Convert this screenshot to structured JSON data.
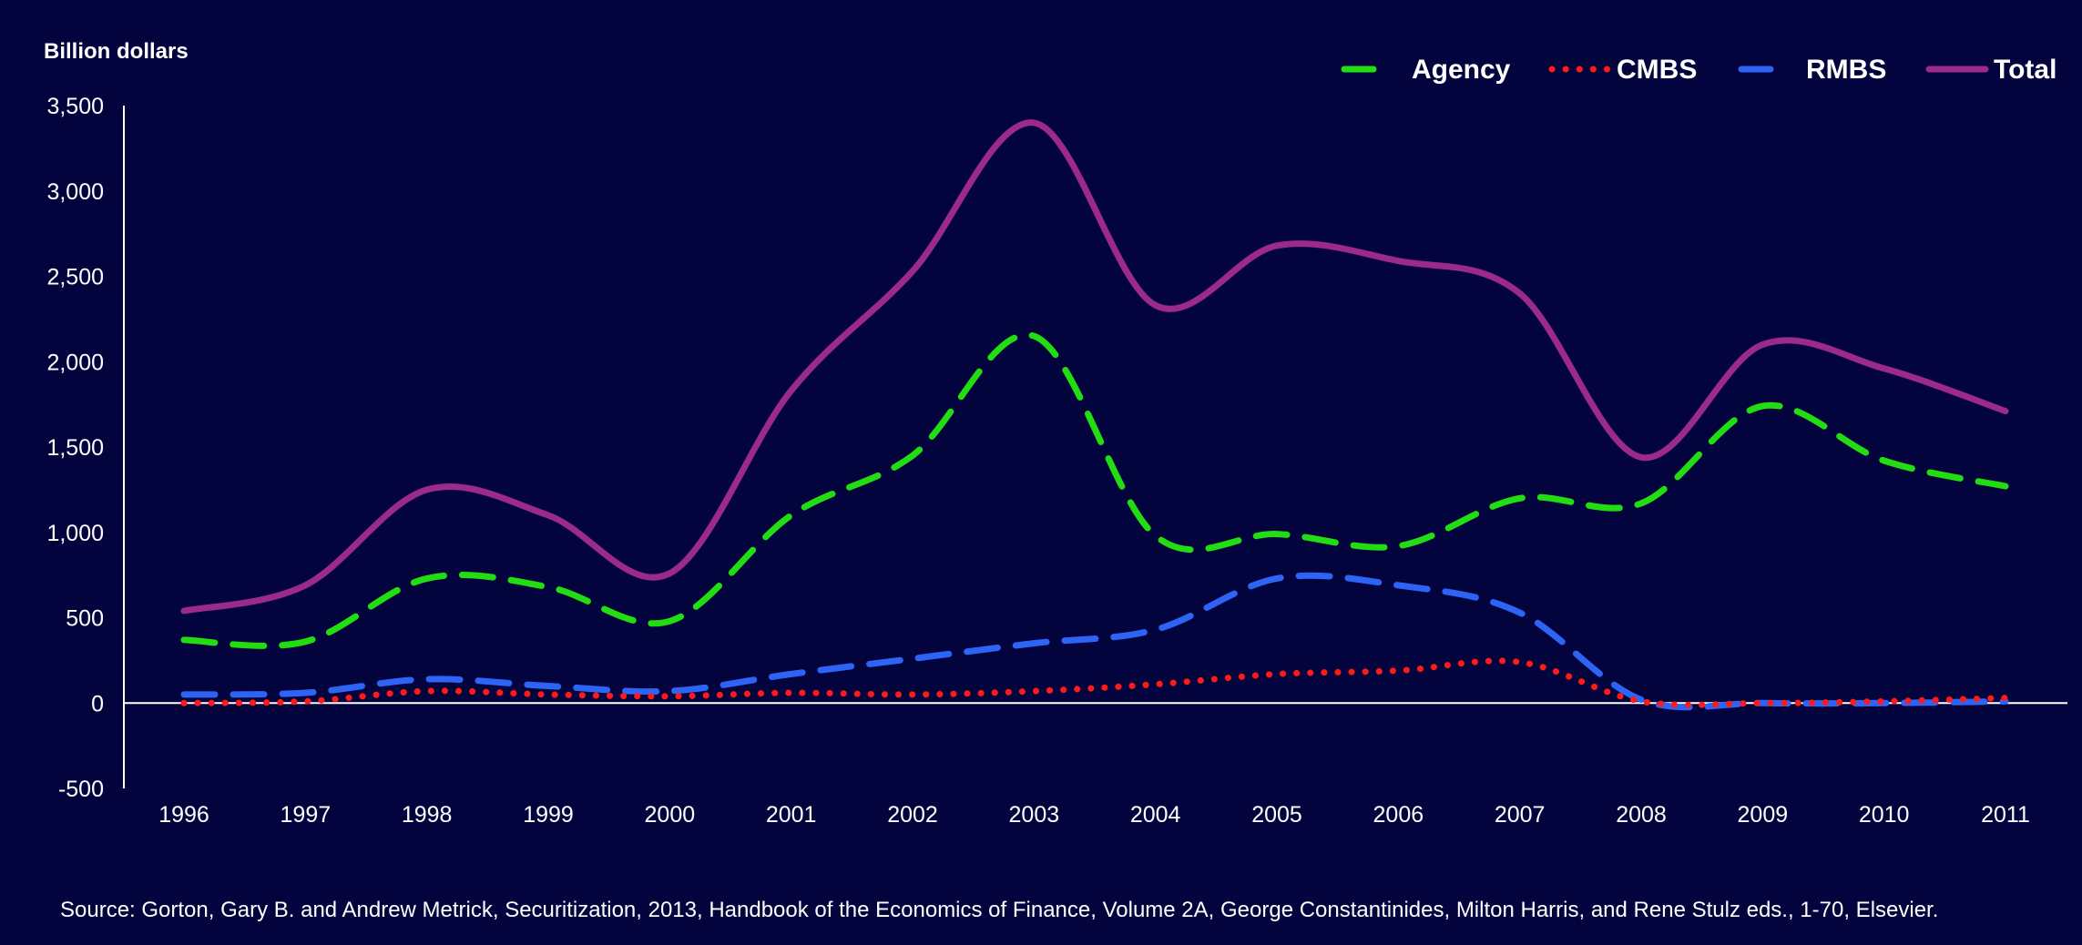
{
  "chart_data": {
    "type": "line",
    "ylabel": "Billion dollars",
    "ylim": [
      -500,
      3500
    ],
    "yticks": [
      -500,
      0,
      500,
      1000,
      1500,
      2000,
      2500,
      3000,
      3500
    ],
    "ytick_labels": [
      "-500",
      "0",
      "500",
      "1,000",
      "1,500",
      "2,000",
      "2,500",
      "3,000",
      "3,500"
    ],
    "x": [
      "1996",
      "1997",
      "1998",
      "1999",
      "2000",
      "2001",
      "2002",
      "2003",
      "2004",
      "2005",
      "2006",
      "2007",
      "2008",
      "2009",
      "2010",
      "2011"
    ],
    "legend_position": "top-right",
    "grid": false,
    "series": [
      {
        "name": "Agency",
        "color": "#22dd11",
        "style": "dashed",
        "values": [
          370,
          360,
          730,
          680,
          480,
          1100,
          1450,
          2150,
          980,
          990,
          920,
          1200,
          1170,
          1740,
          1420,
          1270
        ]
      },
      {
        "name": "CMBS",
        "color": "#ff1a1a",
        "style": "dotted",
        "values": [
          0,
          10,
          70,
          50,
          40,
          60,
          50,
          70,
          110,
          170,
          190,
          240,
          10,
          0,
          10,
          30
        ]
      },
      {
        "name": "RMBS",
        "color": "#2e64f5",
        "style": "dashed",
        "values": [
          50,
          60,
          140,
          100,
          70,
          170,
          260,
          350,
          430,
          730,
          690,
          530,
          20,
          0,
          0,
          10
        ]
      },
      {
        "name": "Total",
        "color": "#9b2a8c",
        "style": "solid",
        "values": [
          540,
          690,
          1250,
          1100,
          760,
          1830,
          2530,
          3400,
          2330,
          2680,
          2590,
          2400,
          1440,
          2100,
          1960,
          1710
        ]
      }
    ]
  },
  "source": "Source: Gorton, Gary B. and Andrew Metrick, Securitization, 2013, Handbook of the Economics of Finance, Volume 2A, George Constantinides, Milton Harris, and Rene Stulz eds., 1-70, Elsevier."
}
